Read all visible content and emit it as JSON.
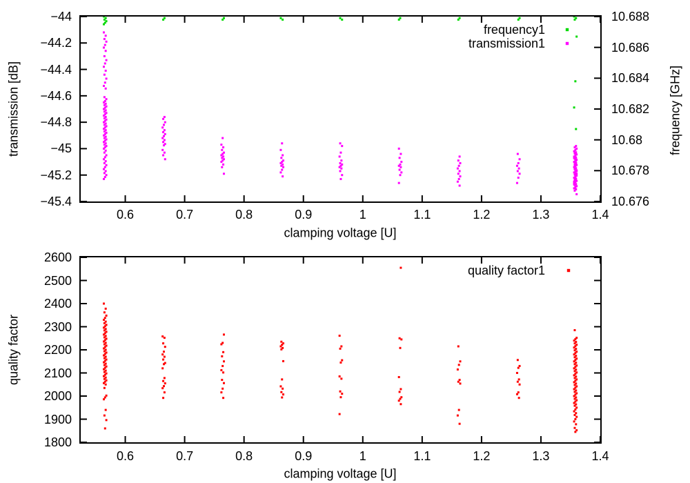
{
  "figure": {
    "background": "#ffffff"
  },
  "colors": {
    "frequency1": "#00d900",
    "transmission1": "#ff00ff",
    "quality factor1": "#ff0000",
    "frame": "#000000",
    "text": "#000000"
  },
  "chart_data": [
    {
      "type": "scatter",
      "title": "",
      "xlabel": "clamping voltage [U]",
      "ylabel": "transmission [dB]",
      "y2label": "frequency [GHz]",
      "xlim": [
        0.525,
        1.4
      ],
      "ylim": [
        -45.4,
        -44
      ],
      "y2lim": [
        10.676,
        10.688
      ],
      "grid": false,
      "legend_position": "top-right-inside",
      "xticks": [
        {
          "v": 0.6,
          "label": "0.6"
        },
        {
          "v": 0.7,
          "label": "0.7"
        },
        {
          "v": 0.8,
          "label": "0.8"
        },
        {
          "v": 0.9,
          "label": "0.9"
        },
        {
          "v": 1.0,
          "label": "1"
        },
        {
          "v": 1.1,
          "label": "1.1"
        },
        {
          "v": 1.2,
          "label": "1.2"
        },
        {
          "v": 1.3,
          "label": "1.3"
        },
        {
          "v": 1.4,
          "label": "1.4"
        }
      ],
      "yticks": [
        {
          "v": -44,
          "label": "−44"
        },
        {
          "v": -44.2,
          "label": "−44.2"
        },
        {
          "v": -44.4,
          "label": "−44.4"
        },
        {
          "v": -44.6,
          "label": "−44.6"
        },
        {
          "v": -44.8,
          "label": "−44.8"
        },
        {
          "v": -45,
          "label": "−45"
        },
        {
          "v": -45.2,
          "label": "−45.2"
        },
        {
          "v": -45.4,
          "label": "−45.4"
        }
      ],
      "y2ticks": [
        {
          "v": 10.688,
          "label": "10.688"
        },
        {
          "v": 10.686,
          "label": "10.686"
        },
        {
          "v": 10.684,
          "label": "10.684"
        },
        {
          "v": 10.682,
          "label": "10.682"
        },
        {
          "v": 10.68,
          "label": "10.68"
        },
        {
          "v": 10.678,
          "label": "10.678"
        },
        {
          "v": 10.676,
          "label": "10.676"
        }
      ],
      "series": [
        {
          "name": "frequency1",
          "axis": "y2",
          "clusters": [
            {
              "x": 0.566,
              "y": [
                10.688,
                10.6879,
                10.6878,
                10.6877,
                10.6876,
                10.6875
              ]
            },
            {
              "x": 0.665,
              "y": [
                10.6879,
                10.6878
              ]
            },
            {
              "x": 0.764,
              "y": [
                10.6879,
                10.6878
              ]
            },
            {
              "x": 0.864,
              "y": [
                10.6879,
                10.6878
              ]
            },
            {
              "x": 0.963,
              "y": [
                10.6879,
                10.6878
              ]
            },
            {
              "x": 1.063,
              "y": [
                10.6879,
                10.6878
              ]
            },
            {
              "x": 1.162,
              "y": [
                10.6879,
                10.6878
              ]
            },
            {
              "x": 1.262,
              "y": [
                10.6879,
                10.6878
              ]
            },
            {
              "x": 1.358,
              "y": [
                10.688,
                10.6879,
                10.6878,
                10.6867,
                10.6838,
                10.6821,
                10.6807
              ]
            }
          ]
        },
        {
          "name": "transmission1",
          "axis": "y",
          "clusters": [
            {
              "x": 0.566,
              "y": [
                -44.12,
                -44.145,
                -44.17,
                -44.19,
                -44.215,
                -44.235,
                -44.26,
                -44.3,
                -44.33,
                -44.355,
                -44.38,
                -44.41,
                -44.44,
                -44.47,
                -44.5,
                -44.525,
                -44.545,
                -44.61,
                -44.625,
                -44.64,
                -44.65,
                -44.66,
                -44.67,
                -44.68,
                -44.69,
                -44.7,
                -44.71,
                -44.72,
                -44.73,
                -44.74,
                -44.75,
                -44.76,
                -44.77,
                -44.78,
                -44.79,
                -44.8,
                -44.81,
                -44.82,
                -44.83,
                -44.84,
                -44.85,
                -44.86,
                -44.87,
                -44.88,
                -44.89,
                -44.9,
                -44.91,
                -44.92,
                -44.93,
                -44.94,
                -44.95,
                -44.96,
                -44.97,
                -44.98,
                -44.99,
                -45.0,
                -45.015,
                -45.03,
                -45.05,
                -45.065,
                -45.08,
                -45.095,
                -45.11,
                -45.125,
                -45.14,
                -45.155,
                -45.17,
                -45.185,
                -45.2,
                -45.215,
                -45.23
              ]
            },
            {
              "x": 0.665,
              "y": [
                -44.76,
                -44.775,
                -44.8,
                -44.82,
                -44.84,
                -44.86,
                -44.875,
                -44.89,
                -44.905,
                -44.92,
                -44.935,
                -44.95,
                -44.965,
                -44.975,
                -45.01,
                -45.03,
                -45.05,
                -45.08
              ]
            },
            {
              "x": 0.764,
              "y": [
                -44.92,
                -44.97,
                -44.99,
                -45.01,
                -45.03,
                -45.04,
                -45.05,
                -45.06,
                -45.07,
                -45.08,
                -45.09,
                -45.1,
                -45.12,
                -45.14,
                -45.19
              ]
            },
            {
              "x": 0.864,
              "y": [
                -44.96,
                -45.01,
                -45.05,
                -45.07,
                -45.09,
                -45.1,
                -45.11,
                -45.12,
                -45.13,
                -45.14,
                -45.16,
                -45.18,
                -45.21
              ]
            },
            {
              "x": 0.963,
              "y": [
                -44.96,
                -44.98,
                -45.03,
                -45.06,
                -45.09,
                -45.11,
                -45.12,
                -45.13,
                -45.14,
                -45.15,
                -45.17,
                -45.2,
                -45.23
              ]
            },
            {
              "x": 1.063,
              "y": [
                -45.0,
                -45.04,
                -45.07,
                -45.1,
                -45.12,
                -45.13,
                -45.14,
                -45.16,
                -45.18,
                -45.2,
                -45.26
              ]
            },
            {
              "x": 1.162,
              "y": [
                -45.06,
                -45.09,
                -45.11,
                -45.13,
                -45.15,
                -45.17,
                -45.19,
                -45.21,
                -45.23,
                -45.25,
                -45.28
              ]
            },
            {
              "x": 1.262,
              "y": [
                -45.04,
                -45.08,
                -45.11,
                -45.13,
                -45.15,
                -45.17,
                -45.19,
                -45.22,
                -45.26
              ]
            },
            {
              "x": 1.358,
              "y": [
                -44.98,
                -44.99,
                -45.0,
                -45.01,
                -45.02,
                -45.028,
                -45.036,
                -45.044,
                -45.052,
                -45.06,
                -45.068,
                -45.076,
                -45.084,
                -45.092,
                -45.1,
                -45.108,
                -45.116,
                -45.124,
                -45.132,
                -45.14,
                -45.148,
                -45.156,
                -45.164,
                -45.172,
                -45.18,
                -45.188,
                -45.196,
                -45.204,
                -45.212,
                -45.22,
                -45.228,
                -45.236,
                -45.244,
                -45.252,
                -45.26,
                -45.268,
                -45.276,
                -45.284,
                -45.292,
                -45.3,
                -45.308,
                -45.318,
                -45.345,
                -45.03,
                -45.07,
                -45.11,
                -45.15,
                -45.19,
                -45.23,
                -45.27,
                -45.09,
                -45.13,
                -45.17,
                -45.21,
                -45.25
              ]
            }
          ]
        }
      ]
    },
    {
      "type": "scatter",
      "title": "",
      "xlabel": "clamping voltage [U]",
      "ylabel": "quality factor",
      "xlim": [
        0.525,
        1.4
      ],
      "ylim": [
        1800,
        2600
      ],
      "grid": false,
      "legend_position": "top-right-inside",
      "xticks": [
        {
          "v": 0.6,
          "label": "0.6"
        },
        {
          "v": 0.7,
          "label": "0.7"
        },
        {
          "v": 0.8,
          "label": "0.8"
        },
        {
          "v": 0.9,
          "label": "0.9"
        },
        {
          "v": 1.0,
          "label": "1"
        },
        {
          "v": 1.1,
          "label": "1.1"
        },
        {
          "v": 1.2,
          "label": "1.2"
        },
        {
          "v": 1.3,
          "label": "1.3"
        },
        {
          "v": 1.4,
          "label": "1.4"
        }
      ],
      "yticks": [
        {
          "v": 2600,
          "label": "2600"
        },
        {
          "v": 2500,
          "label": "2500"
        },
        {
          "v": 2400,
          "label": "2400"
        },
        {
          "v": 2300,
          "label": "2300"
        },
        {
          "v": 2200,
          "label": "2200"
        },
        {
          "v": 2100,
          "label": "2100"
        },
        {
          "v": 2000,
          "label": "2000"
        },
        {
          "v": 1900,
          "label": "1900"
        },
        {
          "v": 1800,
          "label": "1800"
        }
      ],
      "series": [
        {
          "name": "quality factor1",
          "axis": "y",
          "clusters": [
            {
              "x": 0.566,
              "y": [
                2400,
                2378,
                2362,
                2348,
                2338,
                2330,
                2322,
                2315,
                2308,
                2302,
                2296,
                2290,
                2284,
                2278,
                2272,
                2266,
                2260,
                2254,
                2248,
                2242,
                2236,
                2230,
                2224,
                2218,
                2212,
                2206,
                2200,
                2194,
                2188,
                2182,
                2176,
                2170,
                2164,
                2158,
                2152,
                2146,
                2140,
                2134,
                2128,
                2122,
                2116,
                2110,
                2104,
                2098,
                2092,
                2086,
                2080,
                2074,
                2068,
                2062,
                2056,
                2050,
                2035,
                2002,
                1994,
                1986,
                1940,
                1916,
                1896,
                1860
              ]
            },
            {
              "x": 0.665,
              "y": [
                2258,
                2252,
                2228,
                2213,
                2192,
                2180,
                2170,
                2158,
                2143,
                2138,
                2120,
                2078,
                2065,
                2055,
                2043,
                2034,
                2016,
                1992
              ]
            },
            {
              "x": 0.764,
              "y": [
                2266,
                2230,
                2224,
                2190,
                2172,
                2150,
                2130,
                2112,
                2102,
                2070,
                2056,
                2032,
                2016,
                1992
              ]
            },
            {
              "x": 0.864,
              "y": [
                2235,
                2228,
                2222,
                2215,
                2208,
                2202,
                2151,
                2072,
                2042,
                2032,
                2017,
                2007,
                1994
              ]
            },
            {
              "x": 0.963,
              "y": [
                2261,
                2215,
                2205,
                2155,
                2145,
                2085,
                2075,
                2020,
                2010,
                1995,
                1922
              ]
            },
            {
              "x": 1.063,
              "y": [
                2555,
                2250,
                2245,
                2208,
                2082,
                2030,
                2018,
                1995,
                1988,
                1980,
                1965
              ]
            },
            {
              "x": 1.162,
              "y": [
                2215,
                2150,
                2135,
                2115,
                2070,
                2062,
                2054,
                1940,
                1916,
                1880
              ]
            },
            {
              "x": 1.262,
              "y": [
                2156,
                2130,
                2122,
                2100,
                2072,
                2062,
                2050,
                2016,
                2008,
                1992
              ]
            },
            {
              "x": 1.358,
              "y": [
                2285,
                2252,
                2246,
                2240,
                2234,
                2228,
                2222,
                2216,
                2210,
                2204,
                2198,
                2192,
                2186,
                2180,
                2174,
                2168,
                2162,
                2156,
                2150,
                2144,
                2138,
                2132,
                2126,
                2120,
                2114,
                2108,
                2102,
                2096,
                2090,
                2084,
                2078,
                2072,
                2066,
                2060,
                2054,
                2048,
                2042,
                2036,
                2030,
                2024,
                2018,
                2012,
                2006,
                2000,
                1994,
                1988,
                1982,
                1976,
                1970,
                1964,
                1958,
                1950,
                1942,
                1934,
                1926,
                1918,
                1910,
                1900,
                1890,
                1878,
                1862,
                1852,
                1845
              ]
            }
          ]
        }
      ]
    }
  ]
}
